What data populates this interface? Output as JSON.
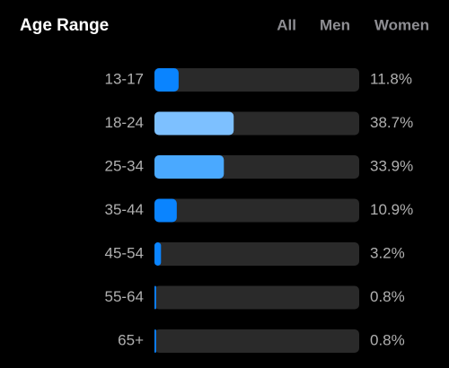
{
  "chart_data": {
    "type": "hbar",
    "title": "Age Range",
    "filters": [
      "All",
      "Men",
      "Women"
    ],
    "active_filter": 0,
    "categories": [
      "13-17",
      "18-24",
      "25-34",
      "35-44",
      "45-54",
      "55-64",
      "65+"
    ],
    "values": [
      11.8,
      38.7,
      33.9,
      10.9,
      3.2,
      0.8,
      0.8
    ],
    "value_labels": [
      "11.8%",
      "38.7%",
      "33.9%",
      "10.9%",
      "3.2%",
      "0.8%",
      "0.8%"
    ],
    "colors": [
      "#0a84ff",
      "#7dc0ff",
      "#4aa9ff",
      "#0a84ff",
      "#0a84ff",
      "#0a84ff",
      "#0a84ff"
    ],
    "track_color": "#2a2a2a",
    "active_color": "#0a84ff",
    "xlim": [
      0,
      100
    ]
  }
}
